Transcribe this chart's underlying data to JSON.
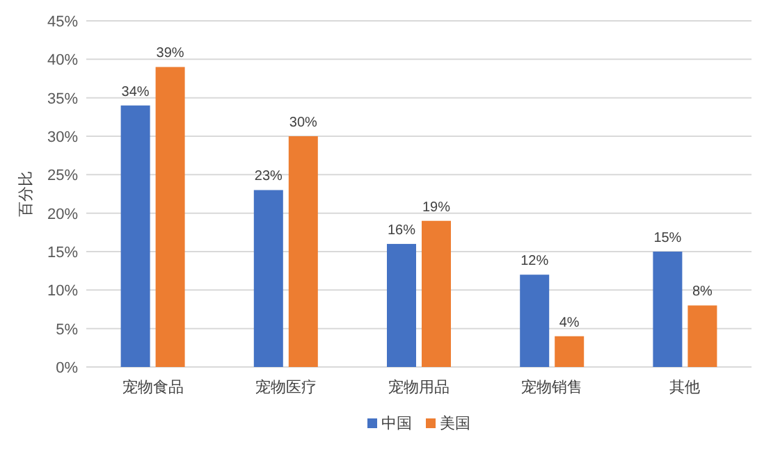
{
  "chart_data": {
    "type": "bar",
    "ylabel": "百分比",
    "categories": [
      "宠物食品",
      "宠物医疗",
      "宠物用品",
      "宠物销售",
      "其他"
    ],
    "series": [
      {
        "name": "中国",
        "color": "#4472c4",
        "values": [
          34,
          23,
          16,
          12,
          15
        ],
        "value_labels": [
          "34%",
          "23%",
          "16%",
          "12%",
          "15%"
        ]
      },
      {
        "name": "美国",
        "color": "#ed7d31",
        "values": [
          39,
          30,
          19,
          4,
          8
        ],
        "value_labels": [
          "39%",
          "30%",
          "19%",
          "4%",
          "8%"
        ]
      }
    ],
    "ylim": [
      0,
      45
    ],
    "yticks": [
      {
        "value": 0,
        "label": "0%"
      },
      {
        "value": 5,
        "label": "5%"
      },
      {
        "value": 10,
        "label": "10%"
      },
      {
        "value": 15,
        "label": "15%"
      },
      {
        "value": 20,
        "label": "20%"
      },
      {
        "value": 25,
        "label": "25%"
      },
      {
        "value": 30,
        "label": "30%"
      },
      {
        "value": 35,
        "label": "35%"
      },
      {
        "value": 40,
        "label": "40%"
      },
      {
        "value": 45,
        "label": "45%"
      }
    ],
    "grid": "y",
    "legend": "bottom"
  }
}
